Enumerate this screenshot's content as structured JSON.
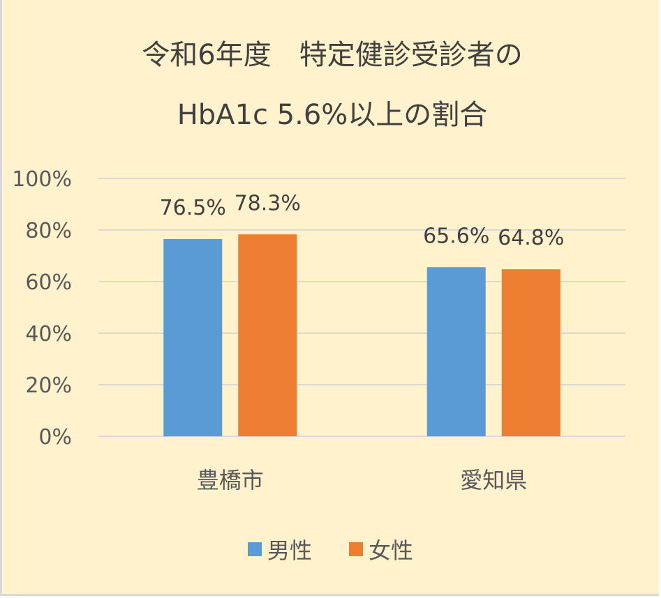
{
  "chart_data": {
    "type": "bar",
    "title_lines": [
      "令和6年度　特定健診受診者の",
      "HbA1c 5.6%以上の割合"
    ],
    "categories": [
      "豊橋市",
      "愛知県"
    ],
    "series": [
      {
        "name": "男性",
        "values": [
          76.5,
          65.6
        ],
        "labels": [
          "76.5%",
          "65.6%"
        ],
        "color": "#5B9BD5"
      },
      {
        "name": "女性",
        "values": [
          78.3,
          64.8
        ],
        "labels": [
          "78.3%",
          "64.8%"
        ],
        "color": "#ED7D31"
      }
    ],
    "yticks": [
      "0%",
      "20%",
      "40%",
      "60%",
      "80%",
      "100%"
    ],
    "ylim": [
      0,
      100
    ],
    "grid": true,
    "legend": "bottom",
    "background": "#FFF2CC"
  }
}
